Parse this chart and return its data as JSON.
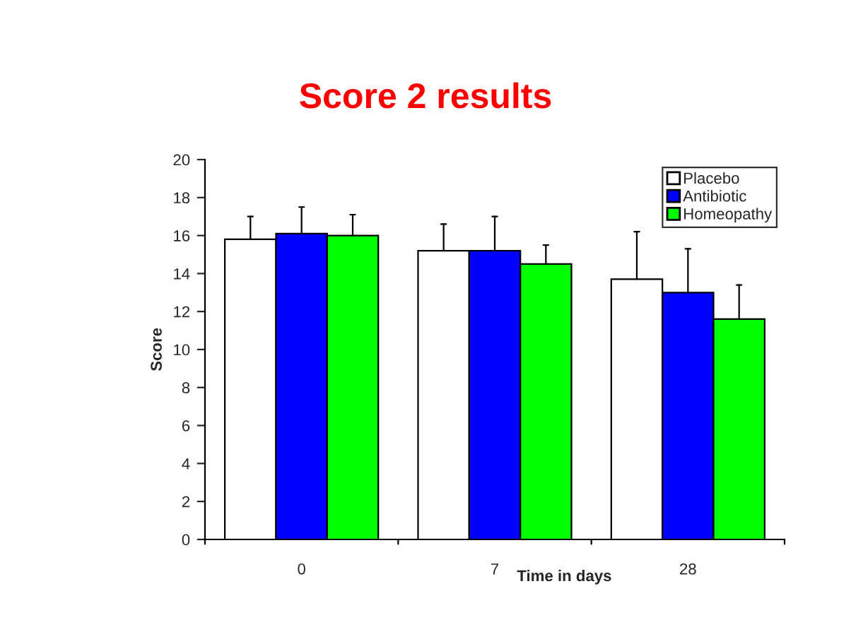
{
  "chart_data": {
    "type": "bar",
    "title": "Score 2 results",
    "xlabel": "Time in days",
    "ylabel": "Score",
    "categories": [
      "0",
      "7",
      "28"
    ],
    "series": [
      {
        "name": "Placebo",
        "color": "#ffffff",
        "values": [
          15.8,
          15.2,
          13.7
        ],
        "errors": [
          [
            15.8,
            17.0
          ],
          [
            15.2,
            16.6
          ],
          [
            13.7,
            16.2
          ]
        ]
      },
      {
        "name": "Antibiotic",
        "color": "#0000ff",
        "values": [
          16.1,
          15.2,
          13.0
        ],
        "errors": [
          [
            16.1,
            17.5
          ],
          [
            15.2,
            17.0
          ],
          [
            13.0,
            15.3
          ]
        ]
      },
      {
        "name": "Homeopathy",
        "color": "#00ff00",
        "values": [
          16.0,
          14.5,
          11.6
        ],
        "errors": [
          [
            16.0,
            17.1
          ],
          [
            14.5,
            15.5
          ],
          [
            11.6,
            13.4
          ]
        ]
      }
    ],
    "ylim": [
      0,
      20
    ],
    "yticks": [
      0,
      2,
      4,
      6,
      8,
      10,
      12,
      14,
      16,
      18,
      20
    ],
    "grid": false,
    "legend": "top right"
  }
}
